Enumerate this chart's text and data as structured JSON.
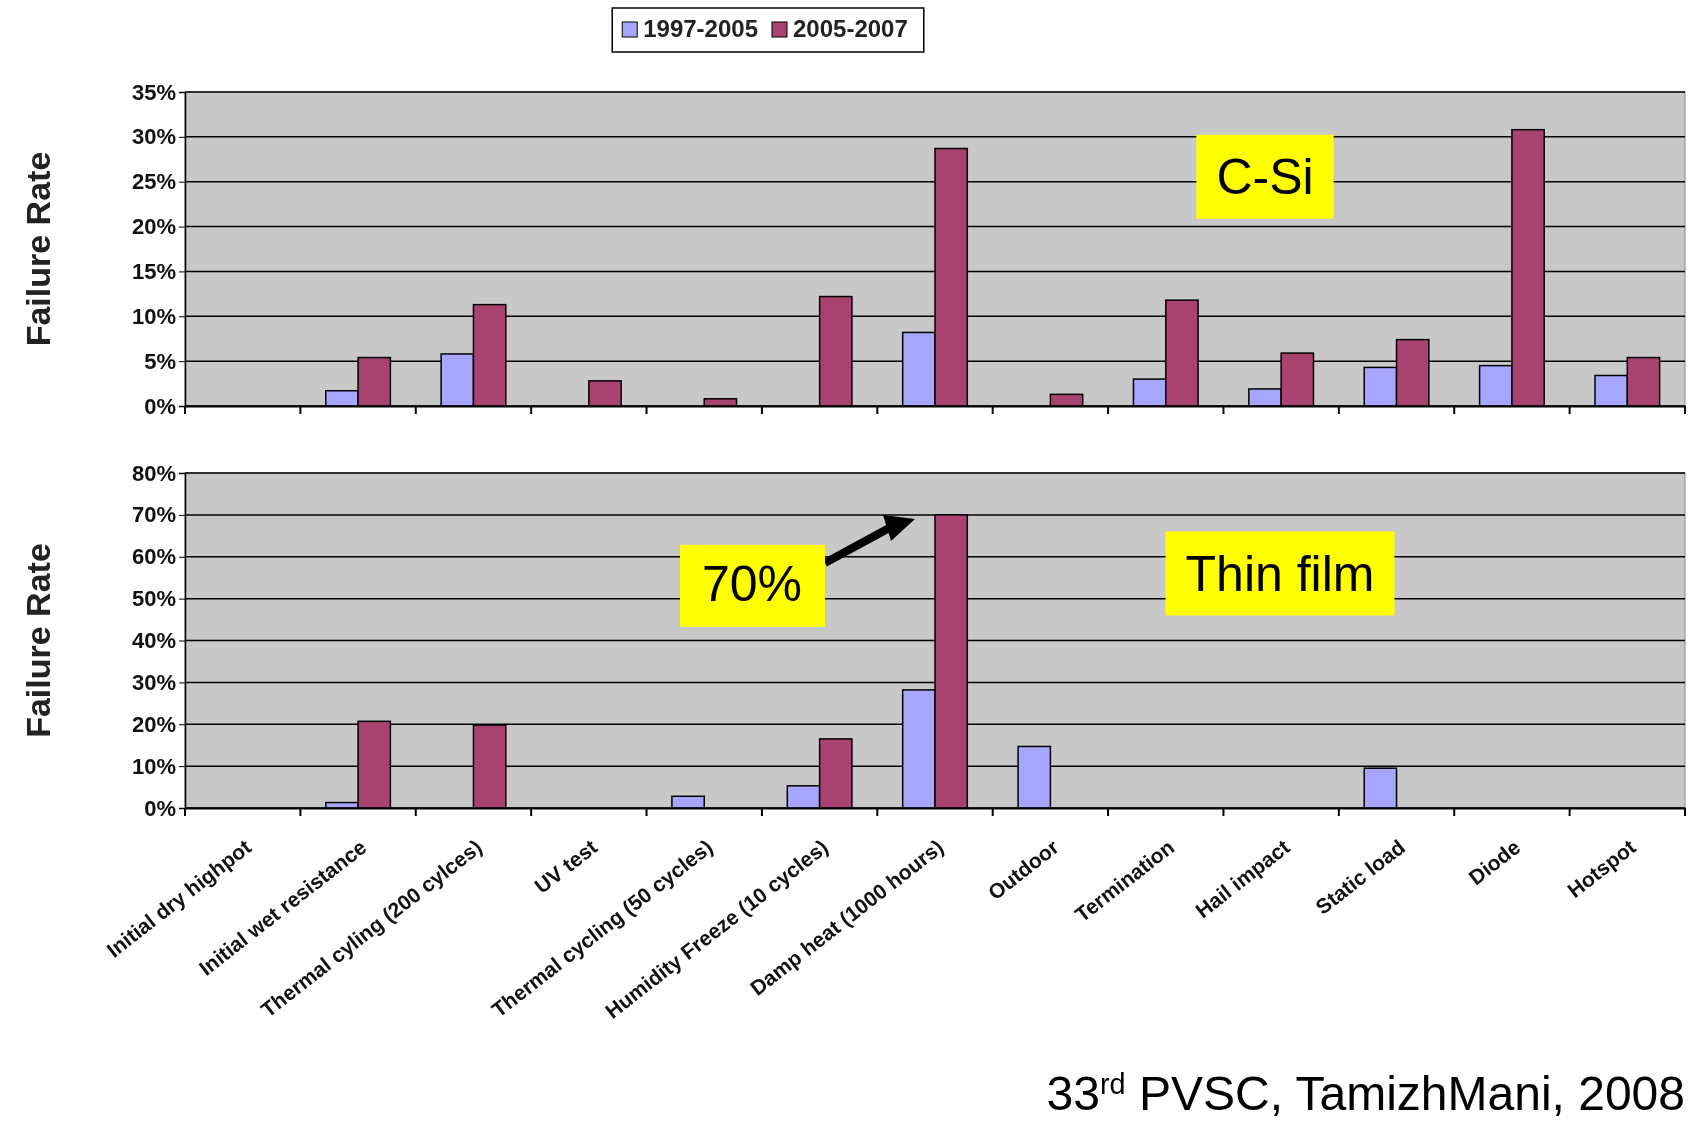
{
  "chart_data": [
    {
      "type": "bar",
      "ylabel": "Failure Rate",
      "categories": [
        null,
        null,
        null,
        null,
        null,
        null,
        null,
        null,
        null,
        null,
        null,
        null,
        null
      ],
      "series": [
        {
          "name": "1997-2005",
          "color": "#a6a6ff",
          "values": [
            null,
            1.7,
            5.8,
            null,
            null,
            null,
            8.2,
            null,
            3.0,
            1.9,
            4.3,
            4.5,
            3.4
          ]
        },
        {
          "name": "2005-2007",
          "color": "#a8426e",
          "values": [
            null,
            5.4,
            11.3,
            2.8,
            0.8,
            12.2,
            28.7,
            1.3,
            11.8,
            5.9,
            7.4,
            30.8,
            5.4
          ]
        }
      ],
      "ylim": [
        0,
        35
      ],
      "yticks": [
        {
          "value": 0,
          "label": "0%"
        },
        {
          "value": 5,
          "label": "5%"
        },
        {
          "value": 10,
          "label": "10%"
        },
        {
          "value": 15,
          "label": "15%"
        },
        {
          "value": 20,
          "label": "20%"
        },
        {
          "value": 25,
          "label": "25%"
        },
        {
          "value": 30,
          "label": "30%"
        },
        {
          "value": 35,
          "label": "35%"
        }
      ],
      "grid": "y",
      "legend": "top",
      "tick_labels": "y",
      "annotations": [
        "C-Si"
      ]
    },
    {
      "type": "bar",
      "ylabel": "Failure Rate",
      "categories": [
        "Initial dry highpot",
        "Initial wet resistance",
        "Thermal cyling (200 cylces)",
        "UV test",
        "Thermal cycling (50 cycles)",
        "Humidity Freeze (10 cycles)",
        "Damp heat (1000 hours)",
        "Outdoor",
        "Termination",
        "Hail impact",
        "Static load",
        "Diode",
        "Hotspot"
      ],
      "series": [
        {
          "color": "#a6a6ff",
          "values": [
            null,
            1.3,
            null,
            null,
            2.8,
            5.3,
            28.2,
            14.7,
            null,
            null,
            9.5,
            null,
            null
          ]
        },
        {
          "color": "#a8426e",
          "values": [
            null,
            20.7,
            19.8,
            null,
            null,
            16.5,
            70,
            null,
            null,
            null,
            null,
            null,
            null
          ]
        }
      ],
      "ylim": [
        0,
        80
      ],
      "yticks": [
        {
          "value": 0,
          "label": "0%"
        },
        {
          "value": 10,
          "label": "10%"
        },
        {
          "value": 20,
          "label": "20%"
        },
        {
          "value": 30,
          "label": "30%"
        },
        {
          "value": 40,
          "label": "40%"
        },
        {
          "value": 50,
          "label": "50%"
        },
        {
          "value": 60,
          "label": "60%"
        },
        {
          "value": 70,
          "label": "70%"
        },
        {
          "value": 80,
          "label": "80%"
        }
      ],
      "grid": "y",
      "annotations": [
        {
          "text": "70%",
          "x": "Damp heat (1000 hours)",
          "y": 70
        },
        "Thin film",
        "33$^{rd}$ PVSC, TamizhMani, 2008"
      ]
    }
  ]
}
